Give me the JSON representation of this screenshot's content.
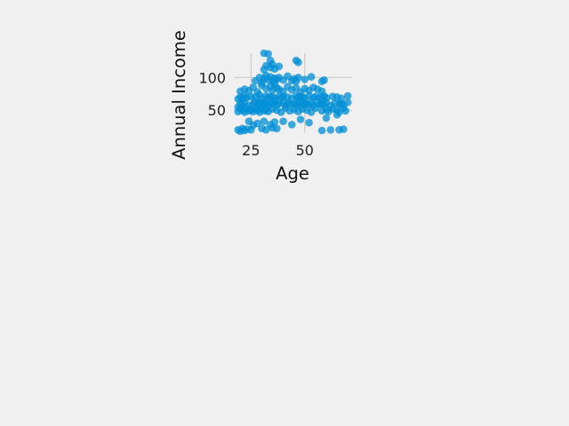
{
  "chart_data": {
    "type": "scatter",
    "title": "",
    "xlabel": "Age",
    "ylabel": "Annual Income",
    "xlim": [
      17,
      72
    ],
    "ylim": [
      15,
      137
    ],
    "xticks": [
      25,
      50
    ],
    "yticks": [
      50,
      100
    ],
    "xtick_labels": [
      "25",
      "50"
    ],
    "ytick_labels": [
      "50",
      "100"
    ],
    "grid": true,
    "colors": {
      "points": "#008fd5",
      "background": "#f0f0f0",
      "grid": "#cbcbcb"
    },
    "series": [
      {
        "name": "",
        "x": [
          19,
          20,
          21,
          22,
          24,
          26,
          27,
          28,
          29,
          30,
          31,
          32,
          33,
          34,
          35,
          36,
          37,
          38,
          40,
          41,
          42,
          43,
          45,
          46,
          47,
          48,
          49,
          50,
          51,
          52,
          53,
          54,
          56,
          57,
          58,
          59,
          60,
          62,
          64,
          66,
          67,
          68,
          70,
          19,
          20,
          21,
          22,
          23,
          25,
          27,
          29,
          30,
          32,
          33,
          34,
          35,
          36,
          38,
          39,
          40,
          42,
          44,
          46,
          47,
          48,
          49,
          50,
          52,
          54,
          55,
          57,
          58,
          59,
          60,
          63,
          65,
          67,
          70,
          19,
          20,
          21,
          22,
          23,
          24,
          25,
          26,
          27,
          28,
          29,
          30,
          31,
          32,
          33,
          35,
          37,
          39,
          41,
          43,
          45,
          47,
          49,
          51,
          53,
          55,
          58,
          60,
          61,
          63,
          65,
          66,
          68,
          69,
          20,
          22,
          24,
          26,
          28,
          30,
          32,
          34,
          35,
          36,
          37,
          38,
          40,
          42,
          44,
          46,
          48,
          50,
          52,
          54,
          56,
          58,
          27,
          29,
          30,
          31,
          32,
          33,
          34,
          35,
          36,
          37,
          38,
          40,
          42,
          44,
          45,
          46,
          47,
          50,
          53,
          58,
          59,
          31,
          32,
          34,
          35,
          36,
          38,
          19,
          20,
          21,
          22,
          23,
          24,
          25,
          26,
          28,
          30,
          31,
          32,
          34,
          35,
          36,
          37,
          40,
          44,
          48,
          52,
          58,
          60,
          62,
          65,
          66,
          68
        ],
        "y": [
          55,
          60,
          58,
          62,
          57,
          60,
          63,
          59,
          61,
          58,
          62,
          60,
          57,
          61,
          59,
          63,
          58,
          60,
          62,
          57,
          61,
          59,
          60,
          58,
          62,
          57,
          61,
          59,
          60,
          58,
          62,
          57,
          61,
          59,
          60,
          58,
          62,
          57,
          61,
          59,
          60,
          58,
          62,
          67,
          70,
          68,
          72,
          69,
          71,
          70,
          73,
          68,
          72,
          69,
          71,
          70,
          68,
          72,
          69,
          71,
          70,
          68,
          72,
          69,
          71,
          70,
          68,
          72,
          69,
          71,
          70,
          68,
          72,
          69,
          71,
          70,
          68,
          72,
          48,
          52,
          50,
          47,
          53,
          49,
          51,
          48,
          52,
          50,
          47,
          53,
          49,
          51,
          48,
          52,
          50,
          47,
          53,
          49,
          51,
          48,
          52,
          50,
          47,
          53,
          49,
          51,
          48,
          52,
          50,
          47,
          53,
          49,
          79,
          82,
          80,
          85,
          78,
          88,
          83,
          86,
          80,
          90,
          84,
          82,
          79,
          86,
          81,
          84,
          78,
          83,
          80,
          85,
          82,
          79,
          95,
          100,
          92,
          98,
          103,
          96,
          101,
          94,
          99,
          97,
          100,
          96,
          102,
          95,
          98,
          94,
          100,
          97,
          101,
          94,
          96,
          112,
          118,
          115,
          120,
          113,
          117,
          20,
          18,
          22,
          19,
          21,
          33,
          20,
          27,
          30,
          22,
          33,
          20,
          28,
          23,
          32,
          22,
          33,
          28,
          36,
          31,
          19,
          38,
          20,
          43,
          20,
          21
        ]
      },
      {
        "name": "",
        "x": [
          31,
          33,
          34,
          46,
          47
        ],
        "y": [
          137,
          136,
          126,
          126,
          123
        ]
      }
    ]
  }
}
